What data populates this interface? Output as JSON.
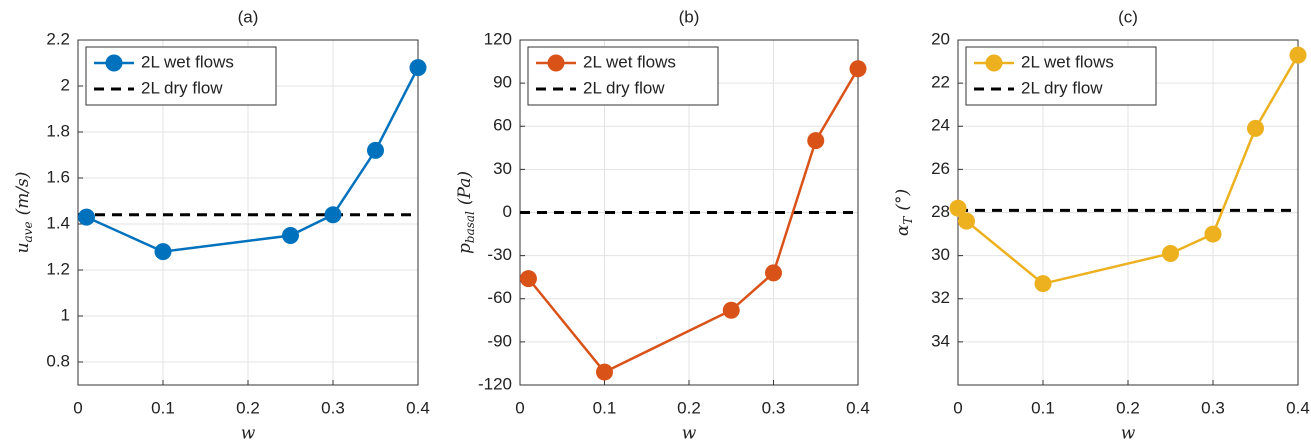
{
  "chart_data": [
    {
      "type": "line",
      "title": "(a)",
      "xlabel": "w",
      "ylabel": {
        "main": "u",
        "sub": "ave",
        "unit": "(m/s)"
      },
      "xlim": [
        0,
        0.4
      ],
      "xticks": [
        0,
        0.1,
        0.2,
        0.3,
        0.4
      ],
      "ylim": [
        0.7,
        2.2
      ],
      "yticks": [
        0.8,
        1,
        1.2,
        1.4,
        1.6,
        1.8,
        2,
        2.2
      ],
      "grid": true,
      "legend": "upper left",
      "y_reversed": false,
      "series": [
        {
          "name": "2L wet flows",
          "color": "#0072bd",
          "x": [
            0.01,
            0.1,
            0.25,
            0.3,
            0.35,
            0.4
          ],
          "values": [
            1.43,
            1.28,
            1.35,
            1.44,
            1.72,
            2.08
          ]
        }
      ],
      "reference": {
        "name": "2L dry flow",
        "color": "#000000",
        "value": 1.44
      }
    },
    {
      "type": "line",
      "title": "(b)",
      "xlabel": "w",
      "ylabel": {
        "main": "p",
        "sub": "basal",
        "unit": "(Pa)"
      },
      "xlim": [
        0,
        0.4
      ],
      "xticks": [
        0,
        0.1,
        0.2,
        0.3,
        0.4
      ],
      "ylim": [
        -120,
        120
      ],
      "yticks": [
        -120,
        -90,
        -60,
        -30,
        0,
        30,
        60,
        90,
        120
      ],
      "grid": true,
      "legend": "upper left",
      "y_reversed": false,
      "series": [
        {
          "name": "2L wet flows",
          "color": "#d95319",
          "x": [
            0.01,
            0.1,
            0.25,
            0.3,
            0.35,
            0.4
          ],
          "values": [
            -46,
            -111,
            -68,
            -42,
            50,
            100
          ]
        }
      ],
      "reference": {
        "name": "2L dry flow",
        "color": "#000000",
        "value": 0
      }
    },
    {
      "type": "line",
      "title": "(c)",
      "xlabel": "w",
      "ylabel": {
        "main": "α",
        "sub": "T",
        "unit": "(°)"
      },
      "xlim": [
        0,
        0.4
      ],
      "xticks": [
        0,
        0.1,
        0.2,
        0.3,
        0.4
      ],
      "ylim": [
        20,
        36
      ],
      "yticks": [
        20,
        22,
        24,
        26,
        28,
        30,
        32,
        34
      ],
      "grid": true,
      "legend": "upper left",
      "y_reversed": true,
      "series": [
        {
          "name": "2L wet flows",
          "color": "#edb120",
          "x": [
            0,
            0.01,
            0.1,
            0.25,
            0.3,
            0.35,
            0.4
          ],
          "values": [
            27.8,
            28.4,
            31.3,
            29.9,
            29.0,
            24.1,
            20.7
          ]
        }
      ],
      "reference": {
        "name": "2L dry flow",
        "color": "#000000",
        "value": 27.9
      }
    }
  ]
}
